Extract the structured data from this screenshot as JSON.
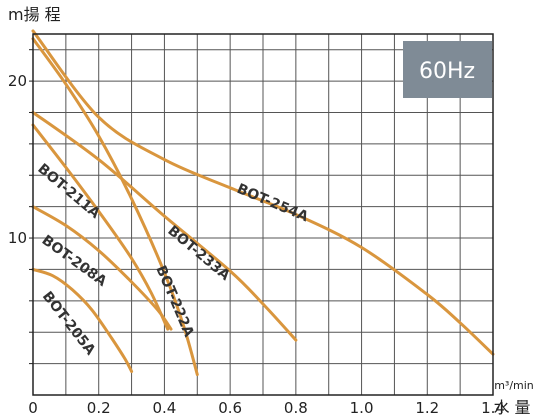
{
  "chart_data": {
    "type": "line",
    "title": "",
    "frequency_badge": "60Hz",
    "ylabel": "m揚 程",
    "xlabel": "水 量",
    "xunit": "m³/min",
    "xlim": [
      0,
      1.4
    ],
    "ylim": [
      0,
      23
    ],
    "grid": true,
    "x_ticks": [
      "0",
      "0.2",
      "0.4",
      "0.6",
      "0.8",
      "1.0",
      "1.2",
      "1.4"
    ],
    "y_ticks": [
      "10",
      "20"
    ],
    "colors": {
      "curve": "#D9963E",
      "grid": "#555555",
      "badge": "#7F8B96"
    },
    "series": [
      {
        "name": "BOT-205A",
        "x": [
          0,
          0.06,
          0.12,
          0.18,
          0.24,
          0.28,
          0.3
        ],
        "y": [
          8,
          7.6,
          6.7,
          5.4,
          3.6,
          2.3,
          1.5
        ]
      },
      {
        "name": "BOT-208A",
        "x": [
          0,
          0.1,
          0.2,
          0.3,
          0.38,
          0.42
        ],
        "y": [
          12,
          10.8,
          9.2,
          7.2,
          5.4,
          4.2
        ]
      },
      {
        "name": "BOT-211A",
        "x": [
          0,
          0.1,
          0.2,
          0.3,
          0.36,
          0.41
        ],
        "y": [
          17.2,
          14.5,
          11.7,
          8.7,
          6.5,
          4.2
        ]
      },
      {
        "name": "BOT-222A",
        "x": [
          0,
          0.1,
          0.2,
          0.3,
          0.4,
          0.46,
          0.5
        ],
        "y": [
          22.7,
          19.8,
          16.5,
          12.5,
          7.8,
          4.3,
          1.3
        ]
      },
      {
        "name": "BOT-233A",
        "x": [
          0,
          0.2,
          0.4,
          0.6,
          0.7,
          0.8
        ],
        "y": [
          18,
          15,
          11.4,
          7.9,
          5.8,
          3.5
        ]
      },
      {
        "name": "BOT-254A",
        "x": [
          0,
          0.2,
          0.4,
          0.6,
          0.8,
          1.0,
          1.2,
          1.3,
          1.4
        ],
        "y": [
          23.2,
          17.7,
          15,
          13.2,
          11.5,
          9.4,
          6.4,
          4.6,
          2.6
        ]
      }
    ]
  }
}
